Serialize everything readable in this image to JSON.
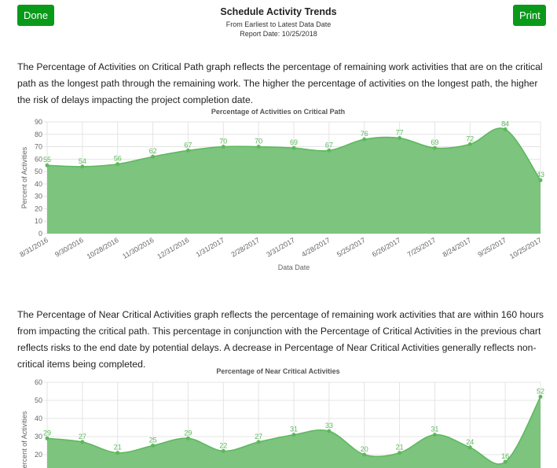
{
  "header": {
    "title": "Schedule Activity Trends",
    "subtitle": "From Earliest to Latest Data Date",
    "report_date": "Report Date: 10/25/2018",
    "done_label": "Done",
    "print_label": "Print"
  },
  "paragraphs": [
    "The Percentage of Activities on Critical Path graph reflects the percentage of remaining work activities that are on the critical path as the longest path through the remaining work. The higher the percentage of activities on the longest path, the higher the risk of delays impacting the project completion date.",
    "The Percentage of Near Critical Activities graph reflects the percentage of remaining work activities that are within 160 hours from impacting the critical path. This percentage in conjunction with the Percentage of Critical Activities in the previous chart reflects risks to the end date by potential delays. A decrease in Percentage of Near Critical Activities generally reflects non-critical items being completed."
  ],
  "colors": {
    "fill": "#7dc47f",
    "line": "#5cb85c",
    "button": "#0a9a1a"
  },
  "chart_data": [
    {
      "type": "area",
      "title": "Percentage of Activities on Critical Path",
      "xlabel": "Data Date",
      "ylabel": "Percent of Activities",
      "ylim": [
        0,
        90
      ],
      "grid": true,
      "categories": [
        "8/31/2016",
        "9/30/2016",
        "10/28/2016",
        "11/30/2016",
        "12/31/2016",
        "1/31/2017",
        "2/28/2017",
        "3/31/2017",
        "4/28/2017",
        "5/25/2017",
        "6/26/2017",
        "7/25/2017",
        "8/24/2017",
        "9/25/2017",
        "10/25/2017"
      ],
      "values": [
        55,
        54,
        56,
        62,
        67,
        70,
        70,
        69,
        67,
        76,
        77,
        69,
        72,
        84,
        43
      ]
    },
    {
      "type": "area",
      "title": "Percentage of Near Critical Activities",
      "ylabel": "Percent of Activities",
      "ylim": [
        0,
        60
      ],
      "grid": true,
      "values": [
        29,
        27,
        21,
        25,
        29,
        22,
        27,
        31,
        33,
        20,
        21,
        31,
        24,
        16,
        52
      ]
    }
  ]
}
